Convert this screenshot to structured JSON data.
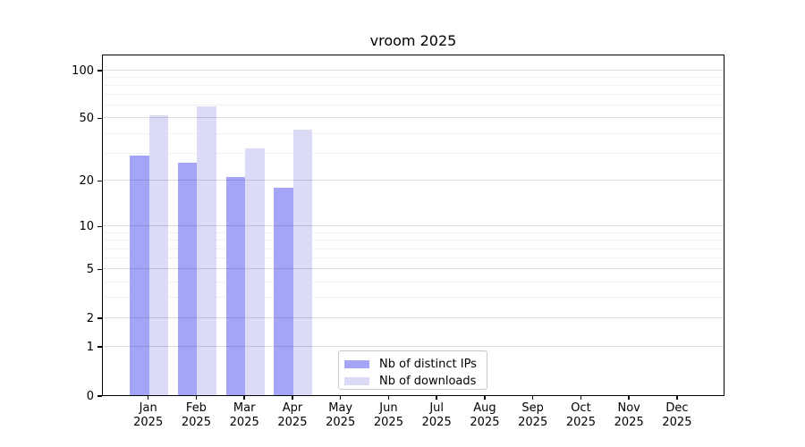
{
  "chart_data": {
    "type": "bar",
    "title": "vroom 2025",
    "x_months": [
      "Jan",
      "Feb",
      "Mar",
      "Apr",
      "May",
      "Jun",
      "Jul",
      "Aug",
      "Sep",
      "Oct",
      "Nov",
      "Dec"
    ],
    "x_year": "2025",
    "series": [
      {
        "name": "Nb of distinct IPs",
        "color": "#a5a5f7",
        "values": [
          29,
          26,
          21,
          18,
          null,
          null,
          null,
          null,
          null,
          null,
          null,
          null
        ]
      },
      {
        "name": "Nb of downloads",
        "color": "#dbdbf7",
        "values": [
          52,
          59,
          32,
          42,
          null,
          null,
          null,
          null,
          null,
          null,
          null,
          null
        ]
      }
    ],
    "y_scale": "log1p",
    "y_ticks": [
      0,
      1,
      2,
      5,
      10,
      20,
      50,
      100
    ],
    "y_tick_labels": [
      "0",
      "1",
      "2",
      "5",
      "10",
      "20",
      "50",
      "100"
    ],
    "y_minor_gridlines": [
      3,
      4,
      6,
      7,
      8,
      9,
      30,
      40,
      60,
      70,
      80,
      90
    ],
    "y_max": 126,
    "grid": "horizontal",
    "legend_position": "lower center inside"
  },
  "colors": {
    "distinct_ips_bar": "#a5a5f7",
    "downloads_bar": "#dbdbf7",
    "spine": "#000000",
    "background": "#ffffff"
  }
}
